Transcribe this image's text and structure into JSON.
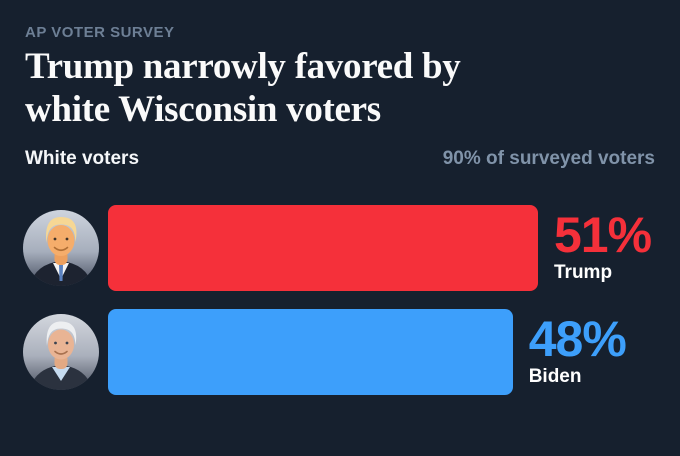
{
  "colors": {
    "background": "#16202e",
    "kicker_text": "#6d7f95",
    "headline_text": "#fafafa",
    "group_label_text": "#f5f7f9",
    "sample_note_text": "#8093a9",
    "trump_red": "#f5303a",
    "biden_blue": "#3d9ffb",
    "candidate_label_text": "#ffffff"
  },
  "header": {
    "kicker": "AP VOTER SURVEY",
    "headline_lines": [
      "Trump narrowly favored by",
      "white Wisconsin voters"
    ],
    "group_label": "White voters",
    "sample_note": "90% of surveyed voters"
  },
  "chart_data": {
    "type": "bar",
    "orientation": "horizontal",
    "title": "Trump narrowly favored by white Wisconsin voters",
    "subtitle": "White voters",
    "note": "90% of surveyed voters",
    "categories": [
      "Trump",
      "Biden"
    ],
    "values": [
      51,
      48
    ],
    "unit": "%",
    "value_labels": [
      "51%",
      "48%"
    ],
    "bar_colors": [
      "#f5303a",
      "#3d9ffb"
    ],
    "avatars": [
      "trump-portrait",
      "biden-portrait"
    ],
    "xlim": [
      0,
      51
    ],
    "grid": false,
    "legend": false
  }
}
